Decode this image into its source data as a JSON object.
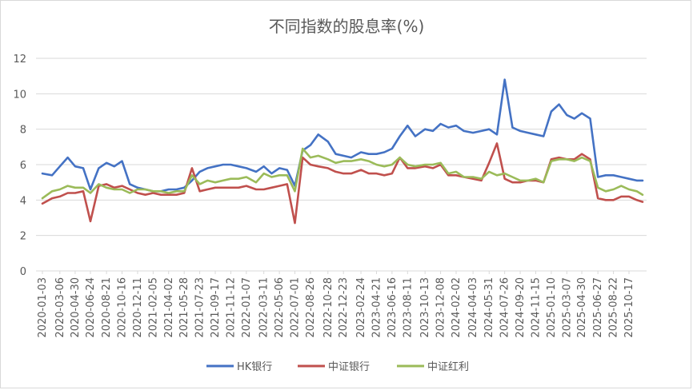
{
  "chart_data": {
    "type": "line",
    "title": "不同指数的股息率(%)",
    "xlabel": "",
    "ylabel": "",
    "ylim": [
      0,
      12
    ],
    "yticks": [
      0,
      2,
      4,
      6,
      8,
      10,
      12
    ],
    "grid": true,
    "legend_position": "bottom",
    "x_tick_labels": [
      "2020-01-03",
      "2020-03-06",
      "2020-04-30",
      "2020-06-24",
      "2020-08-21",
      "2020-10-16",
      "2020-12-11",
      "2021-02-05",
      "2021-04-02",
      "2021-05-28",
      "2021-07-23",
      "2021-09-17",
      "2021-11-12",
      "2022-01-07",
      "2022-03-11",
      "2022-05-06",
      "2022-07-01",
      "2022-08-26",
      "2022-10-28",
      "2022-12-23",
      "2023-02-24",
      "2023-04-21",
      "2023-06-16",
      "2023-08-11",
      "2023-10-13",
      "2023-12-08",
      "2024-02-02",
      "2024-04-03",
      "2024-05-31",
      "2024-07-26",
      "2024-09-20",
      "2024-11-15",
      "2025-01-10",
      "2025-03-07",
      "2025-04-30",
      "2025-06-27",
      "2025-08-22",
      "2025-10-17"
    ],
    "x": [
      "2020-01-03",
      "2020-02-07",
      "2020-03-06",
      "2020-04-03",
      "2020-04-30",
      "2020-05-29",
      "2020-06-24",
      "2020-07-24",
      "2020-08-21",
      "2020-09-18",
      "2020-10-16",
      "2020-11-13",
      "2020-12-11",
      "2021-01-08",
      "2021-02-05",
      "2021-03-05",
      "2021-04-02",
      "2021-04-30",
      "2021-05-28",
      "2021-06-25",
      "2021-07-23",
      "2021-08-20",
      "2021-09-17",
      "2021-10-15",
      "2021-11-12",
      "2021-12-10",
      "2022-01-07",
      "2022-02-11",
      "2022-03-11",
      "2022-04-08",
      "2022-05-06",
      "2022-06-03",
      "2022-07-01",
      "2022-07-29",
      "2022-08-26",
      "2022-09-23",
      "2022-10-28",
      "2022-11-25",
      "2022-12-23",
      "2023-01-20",
      "2023-02-24",
      "2023-03-24",
      "2023-04-21",
      "2023-05-19",
      "2023-06-16",
      "2023-07-14",
      "2023-08-11",
      "2023-09-08",
      "2023-10-13",
      "2023-11-10",
      "2023-12-08",
      "2024-01-05",
      "2024-02-02",
      "2024-03-01",
      "2024-04-03",
      "2024-05-03",
      "2024-05-31",
      "2024-06-28",
      "2024-07-26",
      "2024-08-23",
      "2024-09-20",
      "2024-10-18",
      "2024-11-15",
      "2024-12-13",
      "2025-01-10",
      "2025-02-07",
      "2025-03-07",
      "2025-04-03",
      "2025-04-30",
      "2025-05-30",
      "2025-06-27",
      "2025-07-25",
      "2025-08-22",
      "2025-09-19",
      "2025-10-17",
      "2025-11-14",
      "2025-12-05"
    ],
    "series": [
      {
        "name": "HK银行",
        "color": "#4472c4",
        "values": [
          5.5,
          5.4,
          5.9,
          6.4,
          5.9,
          5.8,
          4.6,
          5.8,
          6.1,
          5.9,
          6.2,
          4.9,
          4.7,
          4.6,
          4.5,
          4.5,
          4.6,
          4.6,
          4.7,
          5.1,
          5.6,
          5.8,
          5.9,
          6.0,
          6.0,
          5.9,
          5.8,
          5.6,
          5.9,
          5.5,
          5.8,
          5.7,
          4.8,
          6.8,
          7.1,
          7.7,
          7.3,
          6.6,
          6.5,
          6.4,
          6.7,
          6.6,
          6.6,
          6.7,
          6.9,
          7.6,
          8.2,
          7.6,
          8.0,
          7.9,
          8.3,
          8.1,
          8.2,
          7.9,
          7.8,
          7.9,
          8.0,
          7.7,
          10.8,
          8.1,
          7.9,
          7.8,
          7.7,
          7.6,
          9.0,
          9.4,
          8.8,
          8.6,
          8.9,
          8.6,
          5.3,
          5.4,
          5.4,
          5.3,
          5.2,
          5.1,
          5.1
        ]
      },
      {
        "name": "中证银行",
        "color": "#c0504d",
        "values": [
          3.8,
          4.1,
          4.2,
          4.4,
          4.4,
          4.5,
          2.8,
          4.8,
          4.9,
          4.7,
          4.8,
          4.6,
          4.4,
          4.3,
          4.4,
          4.3,
          4.3,
          4.3,
          4.4,
          5.8,
          4.5,
          4.6,
          4.7,
          4.7,
          4.7,
          4.7,
          4.8,
          4.6,
          4.6,
          4.7,
          4.8,
          4.9,
          2.7,
          6.4,
          6.0,
          5.9,
          5.8,
          5.6,
          5.5,
          5.5,
          5.7,
          5.5,
          5.5,
          5.4,
          5.5,
          6.4,
          5.8,
          5.8,
          5.9,
          5.8,
          6.0,
          5.4,
          5.4,
          5.3,
          5.2,
          5.1,
          6.1,
          7.2,
          5.2,
          5.0,
          5.0,
          5.1,
          5.1,
          5.0,
          6.3,
          6.4,
          6.3,
          6.3,
          6.6,
          6.3,
          4.1,
          4.0,
          4.0,
          4.2,
          4.2,
          4.0,
          3.9
        ]
      },
      {
        "name": "中证红利",
        "color": "#9bbb59",
        "values": [
          4.1,
          4.5,
          4.6,
          4.8,
          4.7,
          4.7,
          4.4,
          4.9,
          4.7,
          4.6,
          4.6,
          4.4,
          4.6,
          4.6,
          4.5,
          4.5,
          4.4,
          4.5,
          4.5,
          5.4,
          4.9,
          5.1,
          5.0,
          5.1,
          5.2,
          5.2,
          5.3,
          5.0,
          5.5,
          5.3,
          5.4,
          5.4,
          4.5,
          6.9,
          6.4,
          6.5,
          6.3,
          6.1,
          6.2,
          6.2,
          6.3,
          6.2,
          6.0,
          5.9,
          6.0,
          6.4,
          6.0,
          5.9,
          6.0,
          6.0,
          6.1,
          5.5,
          5.6,
          5.3,
          5.3,
          5.2,
          5.6,
          5.4,
          5.5,
          5.3,
          5.1,
          5.1,
          5.2,
          5.0,
          6.2,
          6.3,
          6.3,
          6.2,
          6.4,
          6.2,
          4.7,
          4.5,
          4.6,
          4.8,
          4.6,
          4.5,
          4.3
        ]
      }
    ]
  }
}
